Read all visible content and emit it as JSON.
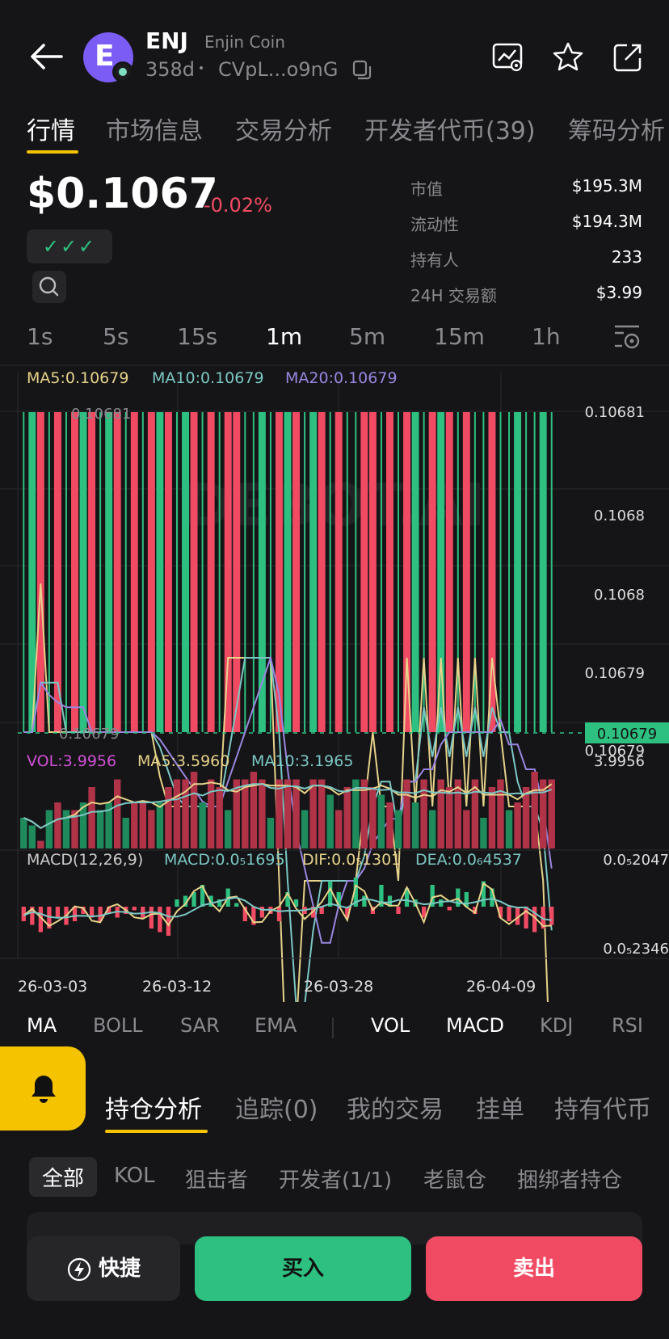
{
  "token": {
    "symbol": "ENJ",
    "name": "Enjin Coin",
    "age": "358d",
    "address": "CVpL...o9nG",
    "avatar_letter": "E"
  },
  "tabs": [
    "行情",
    "市场信息",
    "交易分析",
    "开发者代币(39)",
    "筹码分析"
  ],
  "price": {
    "value": "$0.1067",
    "change": "-0.02%",
    "checks": "✓✓✓"
  },
  "stats": [
    {
      "label": "市值",
      "value": "$195.3M"
    },
    {
      "label": "流动性",
      "value": "$194.3M"
    },
    {
      "label": "持有人",
      "value": "233"
    },
    {
      "label": "24H 交易额",
      "value": "$3.99"
    }
  ],
  "timeframes": [
    "1s",
    "5s",
    "15s",
    "1m",
    "5m",
    "15m",
    "1h"
  ],
  "active_timeframe": "1m",
  "chart_data": {
    "type": "candlestick",
    "ma_legend": {
      "ma5": "MA5:0.10679",
      "ma10": "MA10:0.10679",
      "ma20": "MA20:0.10679"
    },
    "price_axis": [
      "0.10681",
      "0.1068",
      "0.1068",
      "0.10679",
      "0.10679"
    ],
    "high_label": "0.10681",
    "low_label": "0.10679",
    "current_price": "0.10679",
    "watermark": "DEBOT.AI",
    "vol_legend": {
      "vol": "VOL:3.9956",
      "ma5": "MA5:3.5960",
      "ma10": "MA10:3.1965"
    },
    "vol_axis": "3.9956",
    "macd_legend": {
      "title": "MACD(12,26,9)",
      "macd": "MACD:0.0₅1695",
      "dif": "DIF:0.0₅1301",
      "dea": "DEA:0.0₆4537"
    },
    "macd_axis": [
      "0.0₅2047",
      "0.0₅2346"
    ],
    "x_labels": [
      "26-03-03",
      "26-03-12",
      "26-03-28",
      "26-04-09"
    ],
    "candles": [
      "g",
      "g",
      "r",
      "g",
      "r",
      "g",
      "r",
      "g",
      "r",
      "g",
      "g",
      "r",
      "g",
      "r",
      "g",
      "r",
      "g",
      "r",
      "g",
      "g",
      "r",
      "g",
      "r",
      "g",
      "r",
      "r",
      "g",
      "g",
      "g",
      "g",
      "r",
      "g",
      "r",
      "g",
      "g",
      "r",
      "g",
      "r",
      "g",
      "g",
      "r",
      "r",
      "g",
      "r",
      "g",
      "r",
      "g",
      "g",
      "r",
      "g",
      "r",
      "g",
      "r",
      "g",
      "g",
      "r",
      "g",
      "g",
      "g",
      "g",
      "g",
      "g",
      "g"
    ],
    "ma5": [
      0.10679,
      0.10679,
      0.1068,
      0.10679,
      0.10679,
      0.10679,
      0.10679,
      0.10679,
      0.10679,
      0.10679,
      0.10679,
      0.10679,
      0.10679,
      0.10679,
      0.10679,
      0.10679,
      0.106787,
      0.106785,
      0.106785,
      0.106785,
      0.106785,
      0.106785,
      0.106785,
      0.106785,
      0.106795,
      0.106795,
      0.106795,
      0.106795,
      0.106795,
      0.106795,
      0.10678,
      0.106765,
      0.10677,
      0.10678,
      0.10678,
      0.10678,
      0.10678,
      0.10678,
      0.10678,
      0.10678,
      0.106785,
      0.10679,
      0.106785,
      0.106785,
      0.10678,
      0.106795,
      0.106785,
      0.106795,
      0.106785,
      0.106795,
      0.106785,
      0.106795,
      0.106785,
      0.106795,
      0.106785,
      0.106795,
      0.10679,
      0.106785,
      0.106785,
      0.106785,
      0.106785,
      0.10678,
      0.106765
    ],
    "volumes": [
      0.4,
      0.3,
      0.1,
      0.5,
      0.6,
      0.5,
      0.5,
      0.6,
      0.8,
      0.5,
      0.6,
      0.9,
      0.4,
      0.6,
      0.6,
      0.5,
      0.6,
      0.8,
      0.9,
      0.9,
      1.0,
      0.6,
      0.9,
      0.8,
      0.5,
      0.9,
      0.9,
      1.0,
      0.9,
      0.4,
      0.9,
      0.9,
      0.9,
      0.5,
      0.9,
      0.9,
      0.7,
      0.5,
      0.8,
      0.9,
      0.9,
      0.8,
      0.7,
      0.6,
      0.5,
      0.9,
      0.6,
      0.9,
      0.5,
      0.9,
      0.8,
      0.9,
      0.5,
      0.9,
      0.4,
      0.8,
      0.9,
      0.5,
      0.6,
      0.8,
      1.0,
      0.9,
      0.9
    ],
    "vol_colors": [
      "g",
      "g",
      "r",
      "g",
      "r",
      "g",
      "r",
      "g",
      "r",
      "g",
      "g",
      "r",
      "g",
      "r",
      "r",
      "r",
      "g",
      "r",
      "r",
      "r",
      "r",
      "g",
      "r",
      "r",
      "g",
      "r",
      "r",
      "r",
      "r",
      "g",
      "r",
      "r",
      "r",
      "g",
      "r",
      "r",
      "g",
      "r",
      "r",
      "g",
      "r",
      "r",
      "g",
      "r",
      "g",
      "r",
      "g",
      "r",
      "g",
      "r",
      "r",
      "r",
      "r",
      "r",
      "g",
      "r",
      "r",
      "g",
      "r",
      "r",
      "r",
      "r",
      "r"
    ],
    "macd": [
      -0.4,
      -0.5,
      -0.7,
      -0.6,
      -0.3,
      -0.5,
      -0.4,
      -0.2,
      -0.3,
      -0.4,
      -0.2,
      -0.3,
      -0.2,
      -0.1,
      -0.3,
      -0.6,
      -0.7,
      -0.8,
      0.2,
      0.3,
      0.4,
      0.6,
      0.3,
      0.2,
      0.5,
      0.1,
      -0.4,
      -0.5,
      -0.3,
      -0.2,
      -0.4,
      0.4,
      0.2,
      -0.2,
      -0.3,
      -0.2,
      0.7,
      0.4,
      -0.3,
      0.8,
      0.3,
      -0.2,
      0.6,
      0.3,
      -0.2,
      0.5,
      0.2,
      -0.3,
      0.6,
      0.2,
      -0.1,
      0.5,
      0.4,
      -0.2,
      0.7,
      0.5,
      -0.3,
      -0.4,
      -0.5,
      -0.6,
      -0.7,
      -0.6,
      -0.5
    ]
  },
  "indicators": [
    "MA",
    "BOLL",
    "SAR",
    "EMA",
    "VOL",
    "MACD",
    "KDJ",
    "RSI"
  ],
  "active_indicators": [
    "MA",
    "VOL",
    "MACD"
  ],
  "sub_tabs": [
    "持仓分析",
    "追踪(0)",
    "我的交易",
    "挂单",
    "持有代币"
  ],
  "filters": [
    "全部",
    "KOL",
    "狙击者",
    "开发者(1/1)",
    "老鼠仓",
    "捆绑者持仓"
  ],
  "buttons": {
    "quick": "快捷",
    "buy": "买入",
    "sell": "卖出"
  },
  "colors": {
    "green": "#2ec080",
    "red": "#f14b63",
    "yellow": "#f5c300",
    "ma5": "#e6d28a",
    "ma10": "#7bc7c4",
    "ma20": "#9a86e0",
    "vol_label": "#d14fd6"
  }
}
